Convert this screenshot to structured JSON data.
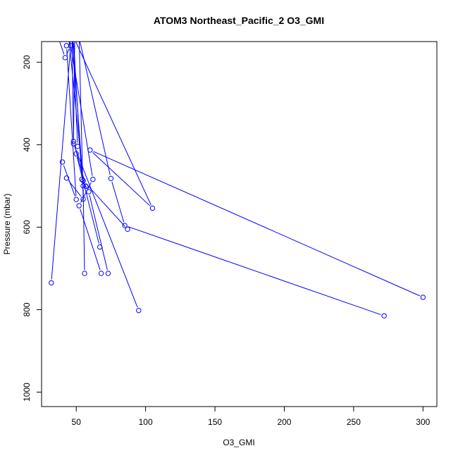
{
  "chart_data": {
    "type": "line",
    "title": "ATOM3 Northeast_Pacific_2 O3_GMI",
    "xlabel": "O3_GMI",
    "ylabel": "Pressure (mbar)",
    "xlim": [
      25,
      310
    ],
    "ylim": [
      1035,
      150
    ],
    "y_axis_inverted": true,
    "grid": false,
    "series_color": "#0000ff",
    "marker": "open-circle",
    "x_ticks": [
      {
        "value": 50,
        "label": "50"
      },
      {
        "value": 100,
        "label": "100"
      },
      {
        "value": 150,
        "label": "150"
      },
      {
        "value": 200,
        "label": "200"
      },
      {
        "value": 250,
        "label": "250"
      },
      {
        "value": 300,
        "label": "300"
      }
    ],
    "y_ticks": [
      {
        "value": 200,
        "label": "200"
      },
      {
        "value": 400,
        "label": "400"
      },
      {
        "value": 600,
        "label": "600"
      },
      {
        "value": 800,
        "label": "800"
      },
      {
        "value": 1000,
        "label": "1000"
      }
    ],
    "series": [
      {
        "x": [
          40,
          50,
          43
        ],
        "y": [
          442,
          533,
          160
        ]
      },
      {
        "x": [
          32,
          46,
          42,
          35
        ],
        "y": [
          735,
          160,
          189,
          120
        ]
      },
      {
        "x": [
          43,
          55,
          52
        ],
        "y": [
          481,
          532,
          130
        ]
      },
      {
        "x": [
          68,
          52,
          62,
          45
        ],
        "y": [
          712,
          548,
          484,
          140
        ]
      },
      {
        "x": [
          73,
          59,
          54,
          48
        ],
        "y": [
          712,
          514,
          484,
          145
        ]
      },
      {
        "x": [
          95,
          48,
          49
        ],
        "y": [
          802,
          398,
          110
        ]
      },
      {
        "x": [
          67,
          50,
          51,
          47
        ],
        "y": [
          648,
          422,
          404,
          100
        ]
      },
      {
        "x": [
          56,
          55,
          47
        ],
        "y": [
          712,
          500,
          130
        ]
      },
      {
        "x": [
          57,
          48,
          47
        ],
        "y": [
          501,
          392,
          140
        ]
      },
      {
        "x": [
          300,
          60,
          105,
          40
        ],
        "y": [
          770,
          413,
          554,
          80
        ]
      },
      {
        "x": [
          272,
          85,
          75,
          51
        ],
        "y": [
          815,
          596,
          482,
          125
        ]
      },
      {
        "x": [
          87,
          55,
          44
        ],
        "y": [
          605,
          487,
          120
        ]
      }
    ]
  }
}
